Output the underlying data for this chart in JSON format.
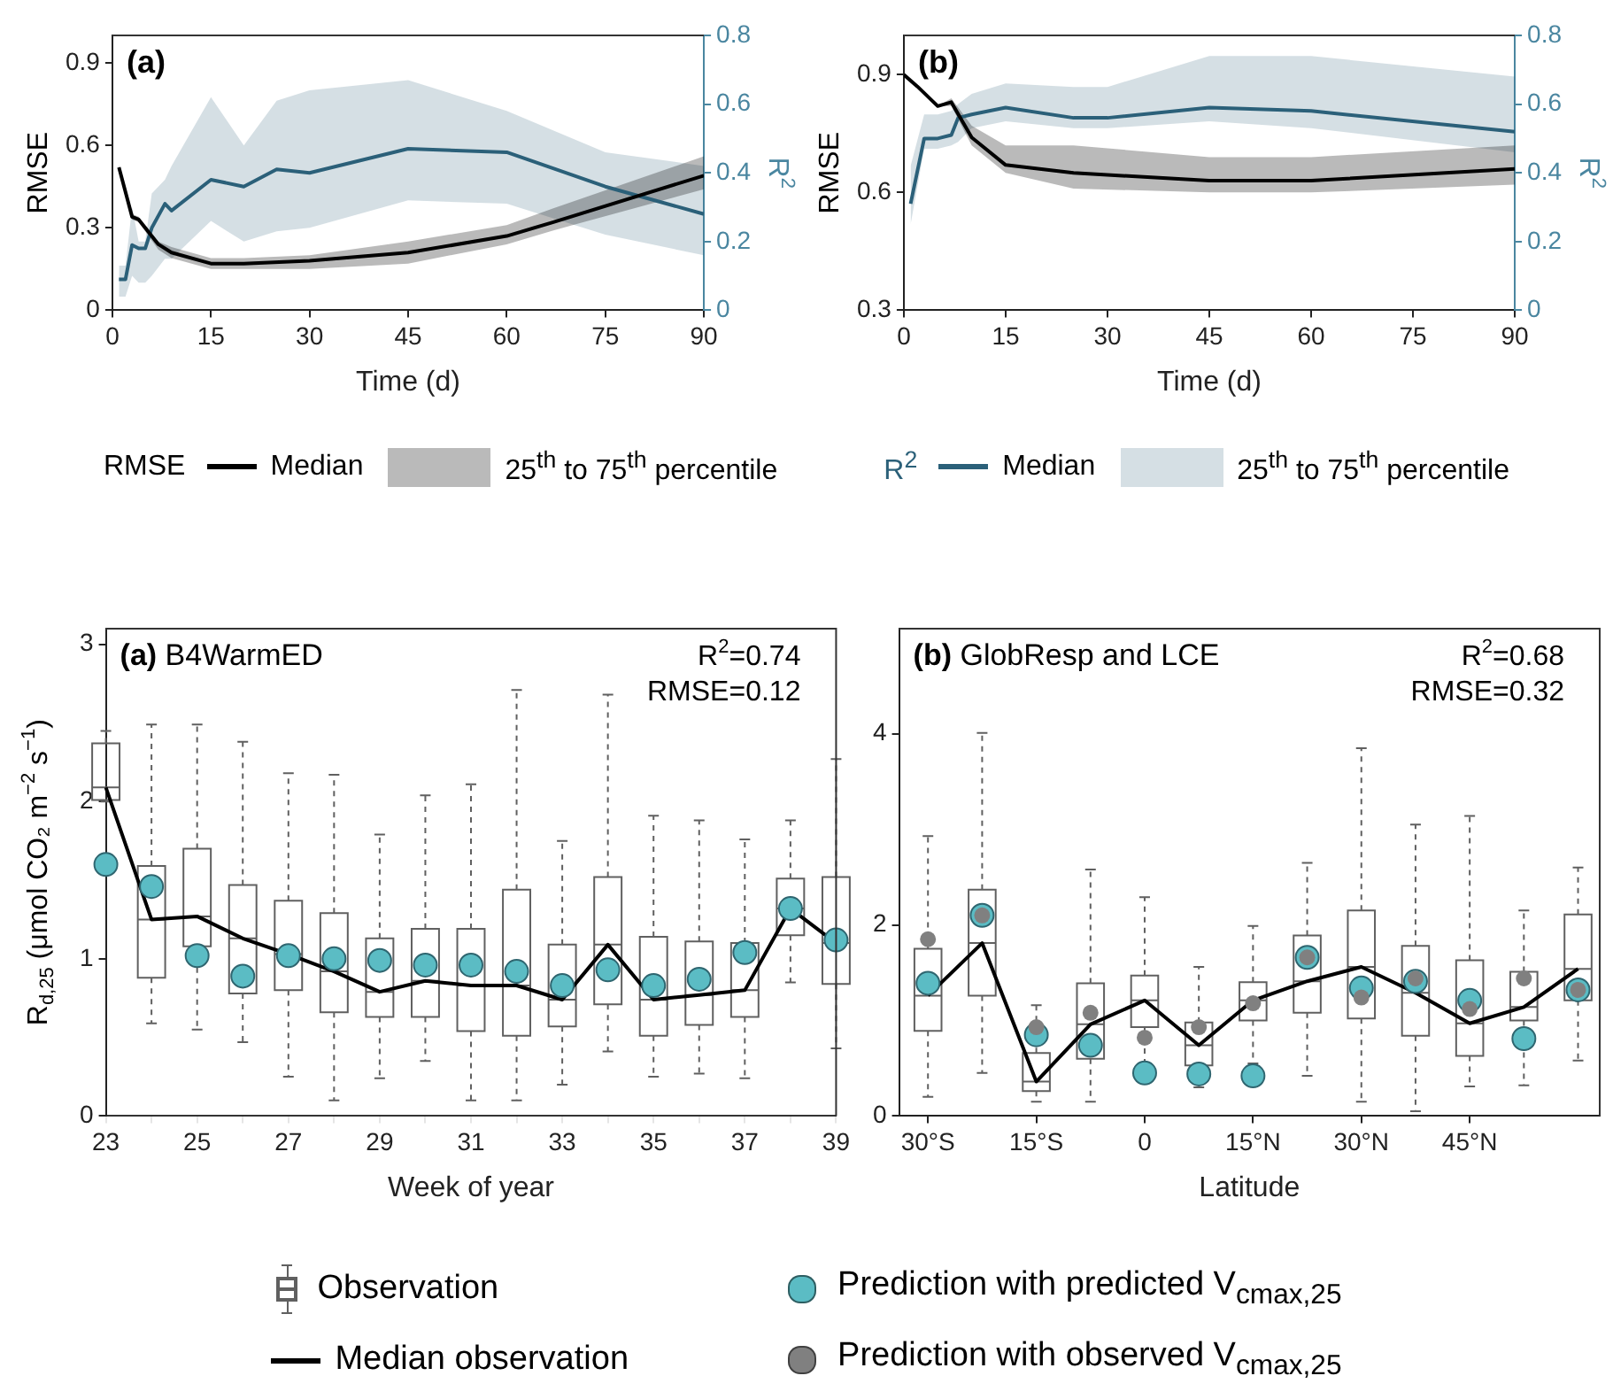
{
  "chart_data": [
    {
      "type": "line",
      "title": "(a)",
      "xlabel": "Time (d)",
      "ylabel": "RMSE",
      "y2label": "R$^{2}$",
      "xlim": [
        0,
        90
      ],
      "xticks": [
        0,
        15,
        30,
        45,
        60,
        75,
        90
      ],
      "ylim": [
        0,
        1
      ],
      "yticks": [
        0,
        0.3,
        0.6,
        0.9
      ],
      "y2lim": [
        0,
        0.8
      ],
      "y2ticks": [
        0,
        0.2,
        0.4,
        0.6,
        0.8
      ],
      "legend": "bottom",
      "annotations": [
        "25$^{th}$ to 75$^{th}$ percentile",
        "25$^{th}$ to 75$^{th}$ percentile"
      ],
      "series": [
        {
          "name": "Median",
          "color": "#000000",
          "axis": "y",
          "x": [
            1,
            3,
            4,
            7,
            9,
            15,
            20,
            30,
            45,
            60,
            67,
            90
          ],
          "values": [
            0.52,
            0.34,
            0.33,
            0.24,
            0.21,
            0.17,
            0.17,
            0.18,
            0.21,
            0.27,
            0.32,
            0.49
          ],
          "lower": [
            0.51,
            0.33,
            0.32,
            0.22,
            0.19,
            0.15,
            0.15,
            0.15,
            0.17,
            0.24,
            0.29,
            0.44
          ],
          "upper": [
            0.53,
            0.35,
            0.34,
            0.25,
            0.23,
            0.19,
            0.19,
            0.2,
            0.25,
            0.31,
            0.37,
            0.56
          ]
        },
        {
          "name": "Median",
          "color": "#2b6079",
          "axis": "y2",
          "x": [
            1,
            2,
            3,
            4,
            5,
            6,
            8,
            9,
            15,
            20,
            25,
            30,
            45,
            60,
            75,
            90
          ],
          "values": [
            0.09,
            0.09,
            0.19,
            0.18,
            0.18,
            0.24,
            0.31,
            0.29,
            0.38,
            0.36,
            0.41,
            0.4,
            0.47,
            0.46,
            0.36,
            0.28
          ],
          "lower": [
            0.04,
            0.04,
            0.1,
            0.08,
            0.08,
            0.1,
            0.15,
            0.15,
            0.26,
            0.2,
            0.23,
            0.24,
            0.32,
            0.31,
            0.22,
            0.16
          ],
          "upper": [
            0.13,
            0.13,
            0.3,
            0.2,
            0.2,
            0.34,
            0.38,
            0.42,
            0.62,
            0.48,
            0.61,
            0.64,
            0.67,
            0.58,
            0.46,
            0.42
          ]
        }
      ]
    },
    {
      "type": "line",
      "title": "(b)",
      "xlabel": "Time (d)",
      "ylabel": "RMSE",
      "y2label": "R$^{2}$",
      "xlim": [
        0,
        90
      ],
      "xticks": [
        0,
        15,
        30,
        45,
        60,
        75,
        90
      ],
      "ylim": [
        0.3,
        1
      ],
      "yticks": [
        0.3,
        0.6,
        0.9
      ],
      "y2lim": [
        0,
        0.8
      ],
      "y2ticks": [
        0,
        0.2,
        0.4,
        0.6,
        0.8
      ],
      "series": [
        {
          "color": "#000000",
          "axis": "y",
          "x": [
            0,
            2,
            5,
            7,
            10,
            15,
            25,
            45,
            60,
            90
          ],
          "values": [
            0.9,
            0.87,
            0.82,
            0.83,
            0.74,
            0.67,
            0.65,
            0.63,
            0.63,
            0.66
          ],
          "lower": [
            0.9,
            0.87,
            0.82,
            0.82,
            0.72,
            0.65,
            0.61,
            0.6,
            0.6,
            0.62
          ],
          "upper": [
            0.9,
            0.87,
            0.82,
            0.84,
            0.77,
            0.72,
            0.72,
            0.69,
            0.69,
            0.72
          ]
        },
        {
          "color": "#2b6079",
          "axis": "y2",
          "x": [
            1,
            3,
            5,
            7,
            8,
            10,
            15,
            25,
            30,
            45,
            60,
            90
          ],
          "values": [
            0.31,
            0.5,
            0.5,
            0.51,
            0.56,
            0.57,
            0.59,
            0.56,
            0.56,
            0.59,
            0.58,
            0.52
          ],
          "lower": [
            0.25,
            0.47,
            0.47,
            0.48,
            0.49,
            0.53,
            0.55,
            0.53,
            0.53,
            0.55,
            0.53,
            0.46
          ],
          "upper": [
            0.42,
            0.57,
            0.57,
            0.58,
            0.6,
            0.63,
            0.66,
            0.65,
            0.65,
            0.74,
            0.74,
            0.68
          ]
        }
      ]
    },
    {
      "type": "box",
      "title": "(a) B4WarmED",
      "xlabel": "Week of year",
      "ylabel": "R$_{d,25}$ (μmol CO₂ m$^{−2}$ s$^{−1}$)",
      "ylim": [
        0,
        3.1
      ],
      "yticks": [
        0,
        1,
        2,
        3
      ],
      "annotations": [
        "R$^{2}$=0.74",
        "RMSE=0.12"
      ],
      "categories": [
        "23",
        null,
        "25",
        null,
        "27",
        null,
        "29",
        null,
        "31",
        null,
        "33",
        null,
        "35",
        null,
        "37",
        null,
        "39"
      ],
      "series": [
        {
          "type": "box",
          "color": "#606060",
          "boxes": [
            {
              "low": 2.0,
              "q1": 2.01,
              "median": 2.09,
              "q3": 2.37,
              "high": 2.45
            },
            {
              "low": 0.59,
              "q1": 0.88,
              "median": 1.25,
              "q3": 1.59,
              "high": 2.49
            },
            {
              "low": 0.55,
              "q1": 1.08,
              "median": 1.27,
              "q3": 1.7,
              "high": 2.49
            },
            {
              "low": 0.47,
              "q1": 0.78,
              "median": 1.13,
              "q3": 1.47,
              "high": 2.38
            },
            {
              "low": 0.25,
              "q1": 0.8,
              "median": 1.03,
              "q3": 1.37,
              "high": 2.18
            },
            {
              "low": 0.1,
              "q1": 0.66,
              "median": 0.92,
              "q3": 1.29,
              "high": 2.17
            },
            {
              "low": 0.24,
              "q1": 0.63,
              "median": 0.79,
              "q3": 1.13,
              "high": 1.79
            },
            {
              "low": 0.35,
              "q1": 0.63,
              "median": 0.86,
              "q3": 1.19,
              "high": 2.04
            },
            {
              "low": 0.1,
              "q1": 0.54,
              "median": 0.83,
              "q3": 1.19,
              "high": 2.11
            },
            {
              "low": 0.1,
              "q1": 0.51,
              "median": 0.83,
              "q3": 1.44,
              "high": 2.71
            },
            {
              "low": 0.2,
              "q1": 0.57,
              "median": 0.74,
              "q3": 1.09,
              "high": 1.75
            },
            {
              "low": 0.41,
              "q1": 0.71,
              "median": 1.09,
              "q3": 1.52,
              "high": 2.68
            },
            {
              "low": 0.25,
              "q1": 0.51,
              "median": 0.74,
              "q3": 1.14,
              "high": 1.91
            },
            {
              "low": 0.27,
              "q1": 0.58,
              "median": 0.77,
              "q3": 1.11,
              "high": 1.88
            },
            {
              "low": 0.24,
              "q1": 0.63,
              "median": 0.8,
              "q3": 1.1,
              "high": 1.76
            },
            {
              "low": 0.85,
              "q1": 1.15,
              "median": 1.32,
              "q3": 1.51,
              "high": 1.88
            },
            {
              "low": 0.43,
              "q1": 0.84,
              "median": 1.1,
              "q3": 1.52,
              "high": 2.27
            }
          ]
        },
        {
          "type": "line",
          "color": "#000000",
          "values": [
            2.09,
            1.25,
            1.27,
            1.13,
            1.03,
            0.92,
            0.79,
            0.86,
            0.83,
            0.83,
            0.74,
            1.09,
            0.74,
            0.77,
            0.8,
            1.32,
            1.1
          ]
        },
        {
          "type": "scatter",
          "color": "#5bbcc4",
          "marker": "circle",
          "values": [
            1.6,
            1.46,
            1.02,
            0.89,
            1.02,
            1.0,
            0.99,
            0.96,
            0.96,
            0.92,
            0.83,
            0.93,
            0.83,
            0.87,
            1.04,
            1.32,
            1.12
          ]
        }
      ]
    },
    {
      "type": "box",
      "title": "(b) GlobResp and LCE",
      "xlabel": "Latitude",
      "ylim": [
        0,
        5.1
      ],
      "yticks": [
        0,
        2,
        4
      ],
      "annotations": [
        "R$^{2}$=0.68",
        "RMSE=0.32"
      ],
      "legend": "bottom",
      "x": [
        -30,
        -22.5,
        -15,
        -7.5,
        0,
        7.5,
        15,
        22.5,
        30,
        37.5,
        45,
        52.5,
        60
      ],
      "xlim": [
        -34,
        63
      ],
      "xticks": [
        {
          "value": -30,
          "label": "30°S"
        },
        {
          "value": -15,
          "label": "15°S"
        },
        0,
        {
          "value": 15,
          "label": "15°N"
        },
        {
          "value": 30,
          "label": "30°N"
        },
        {
          "value": 45,
          "label": "45°N"
        }
      ],
      "series": [
        {
          "name": "Observation",
          "type": "box",
          "color": "#606060",
          "boxes": [
            {
              "low": 0.2,
              "q1": 0.89,
              "median": 1.26,
              "q3": 1.75,
              "high": 2.93
            },
            {
              "low": 0.45,
              "q1": 1.26,
              "median": 1.81,
              "q3": 2.37,
              "high": 4.01
            },
            {
              "low": 0.15,
              "q1": 0.26,
              "median": 0.36,
              "q3": 0.66,
              "high": 1.16
            },
            {
              "low": 0.15,
              "q1": 0.6,
              "median": 0.96,
              "q3": 1.39,
              "high": 2.58
            },
            {
              "low": 0.45,
              "q1": 0.93,
              "median": 1.21,
              "q3": 1.47,
              "high": 2.29
            },
            {
              "low": 0.3,
              "q1": 0.53,
              "median": 0.74,
              "q3": 0.98,
              "high": 1.56
            },
            {
              "low": 0.55,
              "q1": 1.0,
              "median": 1.21,
              "q3": 1.4,
              "high": 1.99
            },
            {
              "low": 0.42,
              "q1": 1.08,
              "median": 1.41,
              "q3": 1.89,
              "high": 2.65
            },
            {
              "low": 0.15,
              "q1": 1.02,
              "median": 1.56,
              "q3": 2.15,
              "high": 3.85
            },
            {
              "low": 0.05,
              "q1": 0.84,
              "median": 1.29,
              "q3": 1.78,
              "high": 3.05
            },
            {
              "low": 0.31,
              "q1": 0.63,
              "median": 0.97,
              "q3": 1.63,
              "high": 3.14
            },
            {
              "low": 0.32,
              "q1": 1.0,
              "median": 1.14,
              "q3": 1.51,
              "high": 2.15
            },
            {
              "low": 0.58,
              "q1": 1.21,
              "median": 1.54,
              "q3": 2.11,
              "high": 2.6
            }
          ]
        },
        {
          "name": "Median observation",
          "type": "line",
          "color": "#000000",
          "values": [
            1.26,
            1.81,
            0.36,
            0.96,
            1.21,
            0.74,
            1.21,
            1.41,
            1.56,
            1.29,
            0.97,
            1.14,
            1.54
          ]
        },
        {
          "name": "Prediction with predicted V$_{cmax,25}$",
          "type": "scatter",
          "color": "#5bbcc4",
          "marker": "circle",
          "values": [
            1.39,
            2.1,
            0.85,
            0.74,
            0.45,
            0.44,
            0.42,
            1.66,
            1.34,
            1.41,
            1.21,
            0.81,
            1.32
          ]
        },
        {
          "name": "Prediction with observed V$_{cmax,25}$",
          "type": "scatter",
          "color": "#808080",
          "marker": "circle",
          "values": [
            1.85,
            2.1,
            0.93,
            1.08,
            0.82,
            0.93,
            1.18,
            1.66,
            1.24,
            1.44,
            1.12,
            1.44,
            1.32
          ]
        }
      ]
    }
  ]
}
